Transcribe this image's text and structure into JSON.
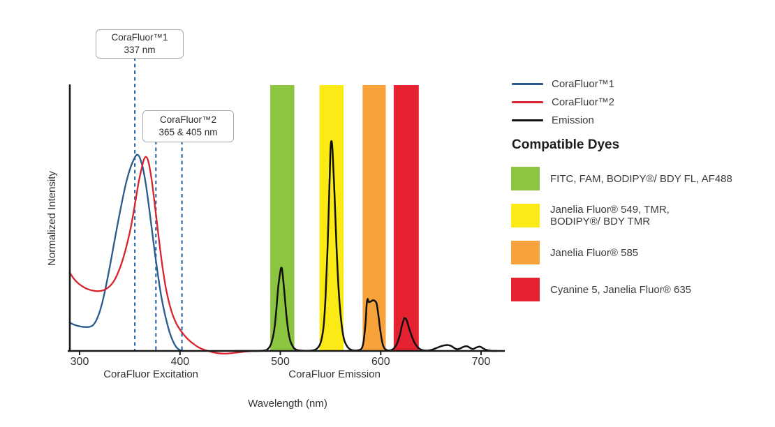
{
  "chart_data": {
    "type": "line",
    "title": "",
    "xlabel": "Wavelength (nm)",
    "ylabel": "Normalized Intensity",
    "x_ticks": [
      300,
      400,
      500,
      600,
      700
    ],
    "x_range_nm": [
      290,
      724
    ],
    "y_range": [
      0,
      1.4
    ],
    "grid": false,
    "legend_position": "right",
    "section_labels": [
      {
        "text": "CoraFluor Excitation",
        "center_nm": 371
      },
      {
        "text": "CoraFluor Emission",
        "center_nm": 554
      }
    ],
    "annotations": [
      {
        "title": "CoraFluor™1",
        "value": "337 nm",
        "guides_nm_drawn": [
          355
        ]
      },
      {
        "title": "CoraFluor™2",
        "value": "365 & 405 nm",
        "guides_nm_drawn": [
          376,
          402
        ]
      }
    ],
    "guide_color": "#2F6BA7",
    "bands": [
      {
        "label": "FITC, FAM, BODIPY®/ BDY FL, AF488",
        "color": "#8CC640",
        "nm_start": 490,
        "nm_end": 514
      },
      {
        "label": "Janelia Fluor® 549, TMR, BODIPY®/ BDY TMR",
        "color": "#FBEA16",
        "nm_start": 539,
        "nm_end": 563
      },
      {
        "label": "Janelia Fluor® 585",
        "color": "#F7A23B",
        "nm_start": 582,
        "nm_end": 605
      },
      {
        "label": "Cyanine 5, Janelia Fluor® 635",
        "color": "#E62230",
        "nm_start": 613,
        "nm_end": 638
      }
    ],
    "series": [
      {
        "name": "CoraFluor™1",
        "color": "#2A5B8C",
        "points": [
          [
            290,
            0.145
          ],
          [
            294,
            0.135
          ],
          [
            298,
            0.128
          ],
          [
            302,
            0.124
          ],
          [
            306,
            0.122
          ],
          [
            310,
            0.123
          ],
          [
            313,
            0.13
          ],
          [
            316,
            0.15
          ],
          [
            319,
            0.185
          ],
          [
            322,
            0.235
          ],
          [
            325,
            0.3
          ],
          [
            328,
            0.375
          ],
          [
            331,
            0.455
          ],
          [
            334,
            0.54
          ],
          [
            338,
            0.65
          ],
          [
            342,
            0.755
          ],
          [
            346,
            0.85
          ],
          [
            350,
            0.925
          ],
          [
            353,
            0.965
          ],
          [
            356,
            0.995
          ],
          [
            358,
            1.0
          ],
          [
            360,
            0.985
          ],
          [
            363,
            0.935
          ],
          [
            366,
            0.85
          ],
          [
            369,
            0.74
          ],
          [
            372,
            0.62
          ],
          [
            375,
            0.5
          ],
          [
            378,
            0.39
          ],
          [
            381,
            0.29
          ],
          [
            384,
            0.21
          ],
          [
            387,
            0.145
          ],
          [
            390,
            0.09
          ],
          [
            393,
            0.05
          ],
          [
            396,
            0.022
          ],
          [
            399,
            0.007
          ],
          [
            402,
            0.001
          ],
          [
            406,
            0
          ],
          [
            415,
            0
          ]
        ]
      },
      {
        "name": "CoraFluor™2",
        "color": "#D7242E",
        "points": [
          [
            290,
            0.4
          ],
          [
            294,
            0.37
          ],
          [
            298,
            0.348
          ],
          [
            302,
            0.332
          ],
          [
            306,
            0.32
          ],
          [
            310,
            0.312
          ],
          [
            314,
            0.307
          ],
          [
            318,
            0.305
          ],
          [
            322,
            0.307
          ],
          [
            326,
            0.315
          ],
          [
            330,
            0.33
          ],
          [
            334,
            0.355
          ],
          [
            338,
            0.395
          ],
          [
            342,
            0.45
          ],
          [
            346,
            0.52
          ],
          [
            350,
            0.605
          ],
          [
            353,
            0.685
          ],
          [
            356,
            0.775
          ],
          [
            359,
            0.865
          ],
          [
            362,
            0.935
          ],
          [
            364,
            0.975
          ],
          [
            366,
            0.99
          ],
          [
            368,
            0.975
          ],
          [
            370,
            0.93
          ],
          [
            372,
            0.865
          ],
          [
            374,
            0.785
          ],
          [
            376,
            0.7
          ],
          [
            378,
            0.615
          ],
          [
            380,
            0.53
          ],
          [
            382,
            0.45
          ],
          [
            384,
            0.38
          ],
          [
            386,
            0.32
          ],
          [
            389,
            0.25
          ],
          [
            392,
            0.195
          ],
          [
            395,
            0.155
          ],
          [
            398,
            0.125
          ],
          [
            402,
            0.095
          ],
          [
            406,
            0.07
          ],
          [
            410,
            0.05
          ],
          [
            414,
            0.034
          ],
          [
            418,
            0.02
          ],
          [
            422,
            0.01
          ],
          [
            426,
            0.003
          ],
          [
            430,
            -0.003
          ],
          [
            436,
            -0.01
          ],
          [
            444,
            -0.014
          ],
          [
            452,
            -0.011
          ],
          [
            460,
            -0.006
          ],
          [
            468,
            -0.002
          ],
          [
            475,
            0
          ],
          [
            482,
            0
          ]
        ]
      },
      {
        "name": "Emission",
        "color": "#111111",
        "points": [
          [
            455,
            0
          ],
          [
            465,
            0
          ],
          [
            475,
            0
          ],
          [
            484,
            0.002
          ],
          [
            488,
            0.012
          ],
          [
            491,
            0.04
          ],
          [
            494,
            0.11
          ],
          [
            496,
            0.21
          ],
          [
            498,
            0.33
          ],
          [
            500,
            0.405
          ],
          [
            501,
            0.425
          ],
          [
            502,
            0.405
          ],
          [
            504,
            0.3
          ],
          [
            506,
            0.185
          ],
          [
            508,
            0.1
          ],
          [
            510,
            0.05
          ],
          [
            513,
            0.018
          ],
          [
            516,
            0.006
          ],
          [
            520,
            0.002
          ],
          [
            526,
            0.001
          ],
          [
            532,
            0.003
          ],
          [
            536,
            0.01
          ],
          [
            540,
            0.04
          ],
          [
            543,
            0.12
          ],
          [
            545,
            0.27
          ],
          [
            547,
            0.52
          ],
          [
            549,
            0.85
          ],
          [
            550,
            1.03
          ],
          [
            551,
            1.07
          ],
          [
            552,
            1.02
          ],
          [
            554,
            0.8
          ],
          [
            556,
            0.53
          ],
          [
            558,
            0.32
          ],
          [
            560,
            0.185
          ],
          [
            562,
            0.1
          ],
          [
            564,
            0.05
          ],
          [
            567,
            0.02
          ],
          [
            570,
            0.007
          ],
          [
            574,
            0.002
          ],
          [
            578,
            0.004
          ],
          [
            581,
            0.012
          ],
          [
            583,
            0.05
          ],
          [
            585,
            0.15
          ],
          [
            586,
            0.235
          ],
          [
            587,
            0.265
          ],
          [
            588,
            0.25
          ],
          [
            590,
            0.252
          ],
          [
            592,
            0.258
          ],
          [
            594,
            0.256
          ],
          [
            596,
            0.24
          ],
          [
            598,
            0.17
          ],
          [
            600,
            0.09
          ],
          [
            602,
            0.035
          ],
          [
            604,
            0.012
          ],
          [
            607,
            0.003
          ],
          [
            610,
            0.004
          ],
          [
            613,
            0.012
          ],
          [
            616,
            0.035
          ],
          [
            619,
            0.08
          ],
          [
            621,
            0.125
          ],
          [
            623,
            0.16
          ],
          [
            624,
            0.168
          ],
          [
            626,
            0.155
          ],
          [
            628,
            0.12
          ],
          [
            631,
            0.075
          ],
          [
            634,
            0.04
          ],
          [
            637,
            0.018
          ],
          [
            640,
            0.007
          ],
          [
            644,
            0.002
          ],
          [
            648,
            0.003
          ],
          [
            652,
            0.008
          ],
          [
            656,
            0.016
          ],
          [
            660,
            0.024
          ],
          [
            664,
            0.029
          ],
          [
            667,
            0.03
          ],
          [
            670,
            0.026
          ],
          [
            673,
            0.016
          ],
          [
            676,
            0.009
          ],
          [
            679,
            0.012
          ],
          [
            682,
            0.02
          ],
          [
            685,
            0.024
          ],
          [
            687,
            0.022
          ],
          [
            690,
            0.013
          ],
          [
            692,
            0.01
          ],
          [
            695,
            0.017
          ],
          [
            698,
            0.022
          ],
          [
            700,
            0.02
          ],
          [
            702,
            0.013
          ],
          [
            705,
            0.006
          ],
          [
            708,
            0.002
          ],
          [
            712,
            0
          ],
          [
            716,
            0
          ]
        ]
      }
    ]
  },
  "legend": {
    "series": [
      {
        "label": "CoraFluor™1",
        "color": "#2A5B8C"
      },
      {
        "label": "CoraFluor™2",
        "color": "#D7242E"
      },
      {
        "label": "Emission",
        "color": "#111111"
      }
    ],
    "dyes_header": "Compatible Dyes",
    "dyes": [
      {
        "label": "FITC, FAM, BODIPY®/ BDY FL, AF488",
        "color": "#8CC640"
      },
      {
        "label": "Janelia Fluor® 549, TMR,\nBODIPY®/ BDY TMR",
        "color": "#FBEA16"
      },
      {
        "label": "Janelia Fluor® 585",
        "color": "#F7A23B"
      },
      {
        "label": "Cyanine 5, Janelia Fluor® 635",
        "color": "#E62230"
      }
    ]
  }
}
